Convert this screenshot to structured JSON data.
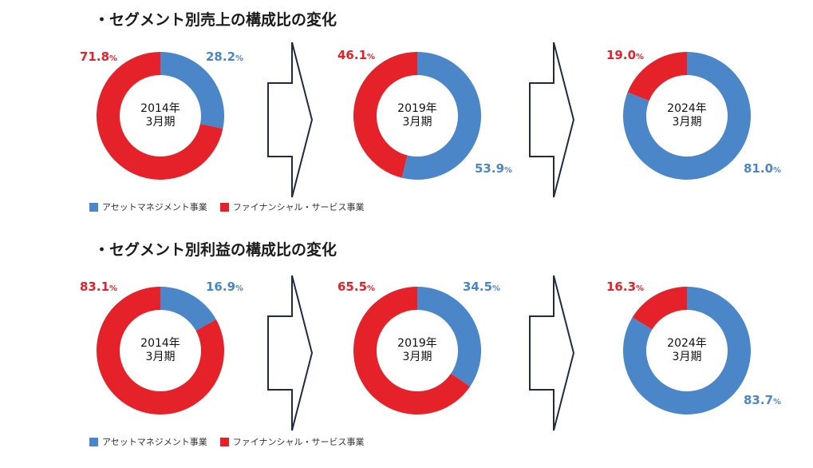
{
  "colors": {
    "asset": "#4a86c8",
    "finance": "#e52129",
    "arrow": "#1f2a44"
  },
  "sections": [
    {
      "title": "・セグメント別売上の構成比の変化",
      "charts": [
        {
          "year": "2014年",
          "period": "3月期",
          "asset_pct": 28.2,
          "finance_pct": 71.8,
          "asset_label": "28.2",
          "finance_label": "71.8"
        },
        {
          "year": "2019年",
          "period": "3月期",
          "asset_pct": 53.9,
          "finance_pct": 46.1,
          "asset_label": "53.9",
          "finance_label": "46.1"
        },
        {
          "year": "2024年",
          "period": "3月期",
          "asset_pct": 81.0,
          "finance_pct": 19.0,
          "asset_label": "81.0",
          "finance_label": "19.0"
        }
      ],
      "legend": [
        "アセットマネジメント事業",
        "ファイナンシャル・サービス事業"
      ]
    },
    {
      "title": "・セグメント別利益の構成比の変化",
      "charts": [
        {
          "year": "2014年",
          "period": "3月期",
          "asset_pct": 16.9,
          "finance_pct": 83.1,
          "asset_label": "16.9",
          "finance_label": "83.1"
        },
        {
          "year": "2019年",
          "period": "3月期",
          "asset_pct": 34.5,
          "finance_pct": 65.5,
          "asset_label": "34.5",
          "finance_label": "65.5"
        },
        {
          "year": "2024年",
          "period": "3月期",
          "asset_pct": 83.7,
          "finance_pct": 16.3,
          "asset_label": "83.7",
          "finance_label": "16.3"
        }
      ],
      "legend": [
        "アセットマネジメント事業",
        "ファイナンシャル・サービス事業"
      ]
    }
  ],
  "percent_sign": "%",
  "chart_data": [
    {
      "type": "pie",
      "title": "・セグメント別売上の構成比の変化",
      "categories": [
        "2014年3月期",
        "2019年3月期",
        "2024年3月期"
      ],
      "series": [
        {
          "name": "アセットマネジメント事業",
          "values": [
            28.2,
            53.9,
            81.0
          ]
        },
        {
          "name": "ファイナンシャル・サービス事業",
          "values": [
            71.8,
            46.1,
            19.0
          ]
        }
      ],
      "legend": "bottom-left"
    },
    {
      "type": "pie",
      "title": "・セグメント別利益の構成比の変化",
      "categories": [
        "2014年3月期",
        "2019年3月期",
        "2024年3月期"
      ],
      "series": [
        {
          "name": "アセットマネジメント事業",
          "values": [
            16.9,
            34.5,
            83.7
          ]
        },
        {
          "name": "ファイナンシャル・サービス事業",
          "values": [
            83.1,
            65.5,
            16.3
          ]
        }
      ],
      "legend": "bottom-left"
    }
  ]
}
